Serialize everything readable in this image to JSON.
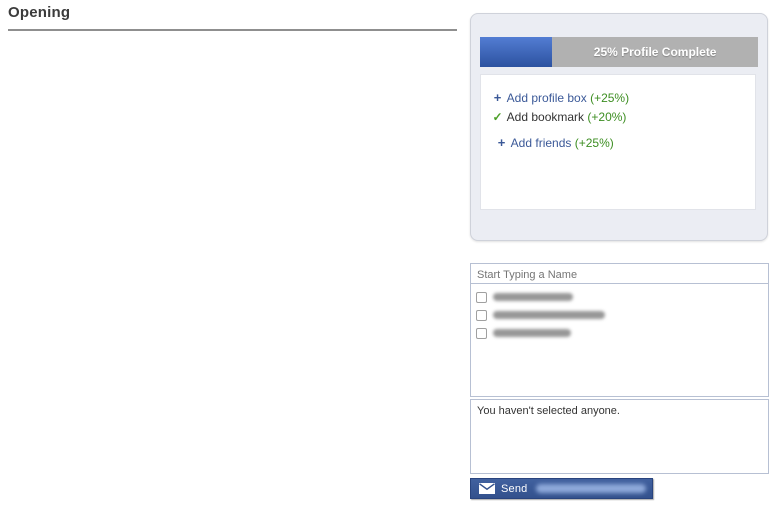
{
  "page": {
    "title": "Opening"
  },
  "profile_widget": {
    "progress_percent": 25,
    "progress_label": "25% Profile Complete",
    "tasks": [
      {
        "glyph": "+",
        "icon": "plus-icon",
        "label": "Add profile box",
        "bonus": "(+25%)",
        "completed": false
      },
      {
        "glyph": "✓",
        "icon": "check-icon",
        "label": "Add bookmark",
        "bonus": "(+20%)",
        "completed": true
      },
      {
        "glyph": "+",
        "icon": "plus-icon",
        "label": "Add friends",
        "bonus": "(+25%)",
        "completed": false
      }
    ]
  },
  "friend_selector": {
    "typeahead_placeholder": "Start Typing a Name",
    "friends": [
      {
        "name_redacted": true
      },
      {
        "name_redacted": true
      },
      {
        "name_redacted": true
      }
    ],
    "empty_message": "You haven't selected anyone.",
    "send_button": {
      "icon": "envelope-icon",
      "label": "Send",
      "suffix_redacted": true
    }
  },
  "colors": {
    "link_blue": "#3b5998",
    "bonus_green": "#3d8e22",
    "check_green": "#4ca028",
    "progress_gray": "#b1b1b1",
    "progress_blue_top": "#537dd3",
    "progress_blue_bottom": "#2c52a0",
    "widget_background": "#ebedf3",
    "box_border_blue": "#b7c0d3",
    "send_button_blue": "#33518d",
    "title_rule_gray": "#8f8f8f"
  }
}
